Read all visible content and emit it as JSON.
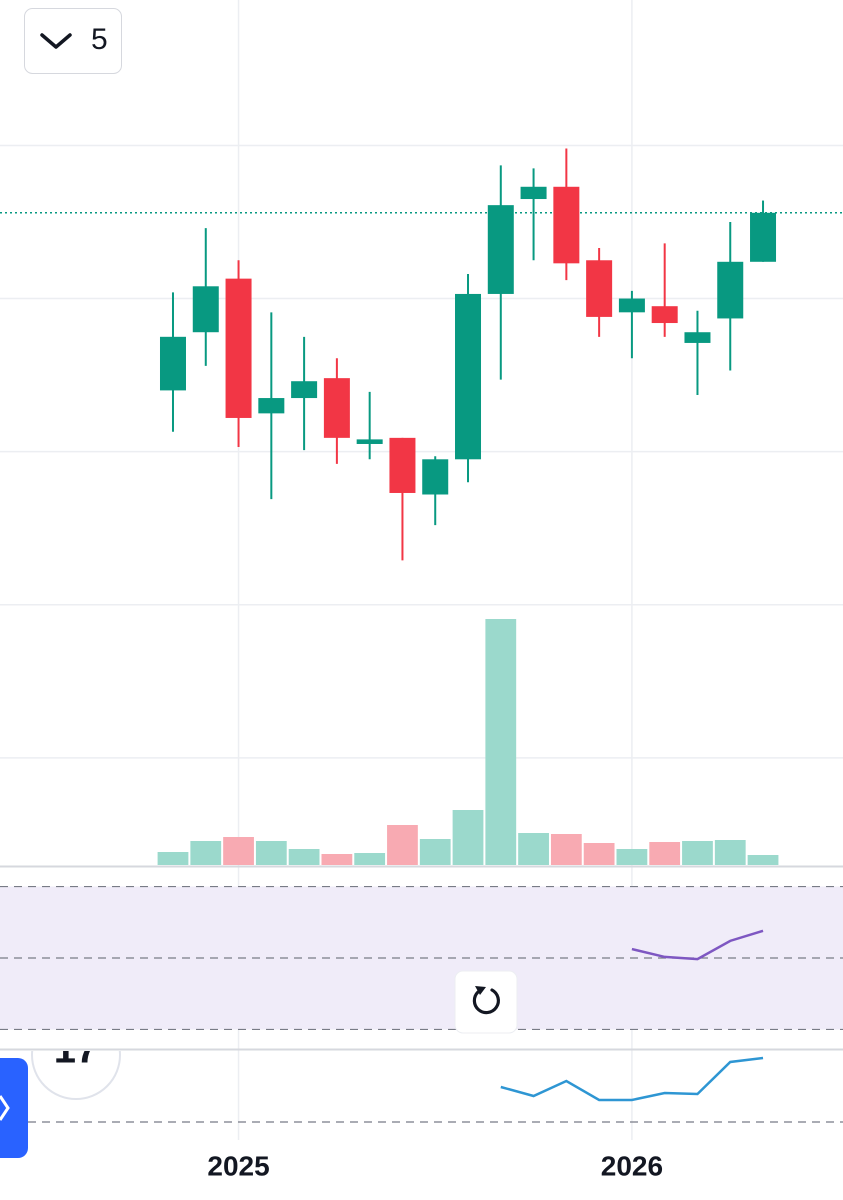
{
  "ui": {
    "interval": "5",
    "badge": "17"
  },
  "chart_data": {
    "type": "candlestick",
    "categories": [
      null,
      null,
      null,
      null,
      null,
      null,
      null,
      null,
      null,
      null,
      null,
      null,
      null,
      null,
      null,
      null,
      null,
      null,
      null
    ],
    "open": [
      14.0,
      17.8,
      21.3,
      12.5,
      13.5,
      14.8,
      10.5,
      10.9,
      7.2,
      9.5,
      20.3,
      26.5,
      27.3,
      22.5,
      19.1,
      19.5,
      17.1,
      18.7,
      22.4
    ],
    "high": [
      20.4,
      24.6,
      22.5,
      19.1,
      17.5,
      16.1,
      13.9,
      10.9,
      9.7,
      21.6,
      28.7,
      28.5,
      29.8,
      23.3,
      20.5,
      23.6,
      19.2,
      25.0,
      26.4
    ],
    "low": [
      11.3,
      15.6,
      10.3,
      6.9,
      10.1,
      9.2,
      9.5,
      2.9,
      5.2,
      8.0,
      14.7,
      22.5,
      21.2,
      17.5,
      16.1,
      17.5,
      13.7,
      15.3,
      22.4
    ],
    "close": [
      17.5,
      20.8,
      12.2,
      13.5,
      14.6,
      10.9,
      10.8,
      7.3,
      9.5,
      20.3,
      26.1,
      27.3,
      22.3,
      18.8,
      20.0,
      18.4,
      17.8,
      22.4,
      25.6
    ],
    "up_color": "#089981",
    "down_color": "#f23645",
    "ylim": [
      -17,
      39.5
    ],
    "yticks": [
      -10,
      0,
      10,
      20,
      30
    ],
    "grid": true,
    "last_price_line": true,
    "xticks": [
      {
        "value": 2,
        "label": "2025"
      },
      {
        "value": 14,
        "label": "2026"
      }
    ],
    "volume": {
      "values": [
        13,
        24,
        28,
        24,
        16,
        11,
        12,
        40,
        26,
        55,
        246,
        32,
        31,
        22,
        16,
        23,
        24,
        25,
        10
      ],
      "up_color": "#9bd9cc",
      "down_color": "#f8aab2",
      "ylim": [
        0,
        300
      ]
    },
    "indicators": [
      {
        "color": "#7e57c2",
        "band_color": "#f0ecf9",
        "ylim": [
          24.8,
          75.2
        ],
        "yticks": [
          30,
          50,
          70
        ],
        "band": [
          30,
          70
        ],
        "values": [
          null,
          null,
          null,
          null,
          null,
          null,
          null,
          null,
          null,
          null,
          null,
          null,
          null,
          null,
          52.5,
          50.3,
          49.7,
          54.8,
          57.6
        ]
      },
      {
        "color": "#2e96d3",
        "ylim": [
          -1.8,
          7.2
        ],
        "yticks": [
          0
        ],
        "values": [
          null,
          null,
          null,
          null,
          null,
          null,
          null,
          null,
          null,
          null,
          3.5,
          2.6,
          4.1,
          2.2,
          2.2,
          2.9,
          2.8,
          6.0,
          6.4
        ]
      }
    ]
  }
}
